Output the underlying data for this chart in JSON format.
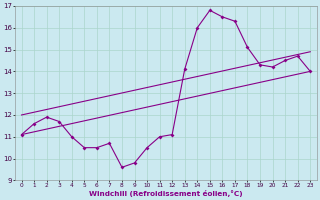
{
  "xlabel": "Windchill (Refroidissement éolien,°C)",
  "bg_color": "#cbe9f0",
  "line_color": "#880088",
  "grid_color": "#aad5cc",
  "xlim": [
    -0.5,
    23.5
  ],
  "ylim": [
    9,
    17
  ],
  "yticks": [
    9,
    10,
    11,
    12,
    13,
    14,
    15,
    16,
    17
  ],
  "xticks": [
    0,
    1,
    2,
    3,
    4,
    5,
    6,
    7,
    8,
    9,
    10,
    11,
    12,
    13,
    14,
    15,
    16,
    17,
    18,
    19,
    20,
    21,
    22,
    23
  ],
  "series1_x": [
    0,
    1,
    2,
    3,
    4,
    5,
    6,
    7,
    8,
    9,
    10,
    11,
    12,
    13,
    14,
    15,
    16,
    17,
    18,
    19,
    20,
    21,
    22,
    23
  ],
  "series1_y": [
    11.1,
    11.6,
    11.9,
    11.7,
    11.0,
    10.5,
    10.5,
    10.7,
    9.6,
    9.8,
    10.5,
    11.0,
    11.1,
    14.1,
    16.0,
    16.8,
    16.5,
    16.3,
    15.1,
    14.3,
    14.2,
    14.5,
    14.7,
    14.0
  ],
  "series2_x": [
    0,
    23
  ],
  "series2_y": [
    11.1,
    14.0
  ],
  "series3_x": [
    0,
    23
  ],
  "series3_y": [
    12.0,
    14.9
  ]
}
